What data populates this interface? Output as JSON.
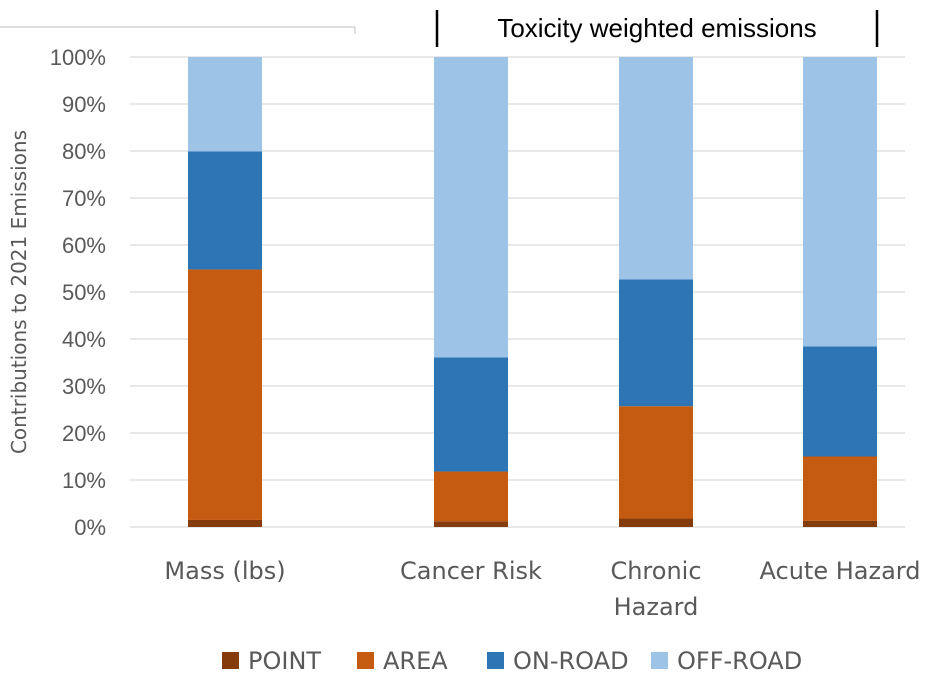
{
  "chart_data": {
    "type": "bar",
    "stacked": true,
    "annotation": "Toxicity weighted emissions",
    "ylabel": "Contributions to 2021 Emissions",
    "ylim": [
      0,
      100
    ],
    "yticks": [
      "0%",
      "10%",
      "20%",
      "30%",
      "40%",
      "50%",
      "60%",
      "70%",
      "80%",
      "90%",
      "100%"
    ],
    "categories": [
      {
        "label_lines": [
          "Mass (lbs)"
        ]
      },
      {
        "label_lines": [
          "Cancer Risk"
        ]
      },
      {
        "label_lines": [
          "Chronic",
          "Hazard"
        ]
      },
      {
        "label_lines": [
          "Acute Hazard"
        ]
      }
    ],
    "series": [
      {
        "name": "POINT",
        "color": "#843c0c",
        "values": [
          1.5,
          1.2,
          1.8,
          1.3
        ]
      },
      {
        "name": "AREA",
        "color": "#c55a11",
        "values": [
          53.3,
          10.6,
          23.9,
          13.7
        ]
      },
      {
        "name": "ON-ROAD",
        "color": "#2e75b6",
        "values": [
          25.1,
          24.3,
          27.0,
          23.4
        ]
      },
      {
        "name": "OFF-ROAD",
        "color": "#9dc3e6",
        "values": [
          20.1,
          63.9,
          47.3,
          61.6
        ]
      }
    ],
    "grid": true,
    "legend_position": "bottom"
  }
}
